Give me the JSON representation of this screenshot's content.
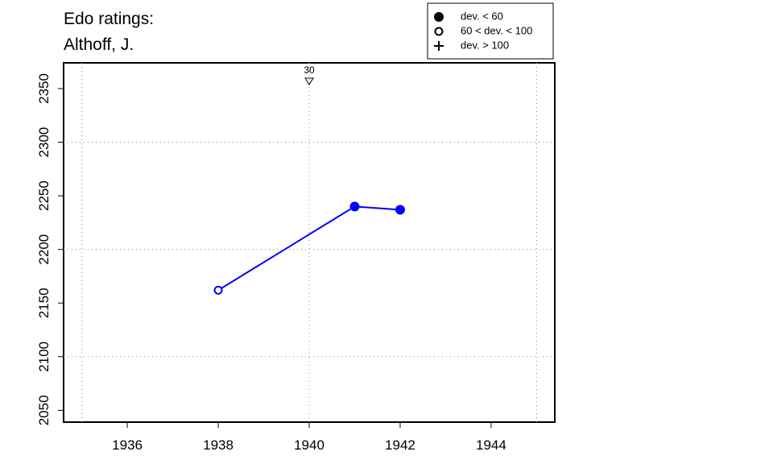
{
  "chart_data": {
    "type": "line",
    "title": "Edo ratings:",
    "subtitle": "Althoff, J.",
    "x": [
      1938,
      1941,
      1942
    ],
    "series": [
      {
        "name": "Althoff, J.",
        "color": "#0000ff",
        "values": [
          2162,
          2240,
          2237
        ],
        "markers": [
          "open",
          "filled",
          "filled"
        ]
      }
    ],
    "xlim": [
      1934.6,
      1945.4
    ],
    "xticks": [
      1936,
      1938,
      1940,
      1942,
      1944
    ],
    "ylim": [
      2039,
      2374
    ],
    "yticks": [
      2050,
      2100,
      2150,
      2200,
      2250,
      2300,
      2350
    ],
    "xgrid": [
      1935,
      1940,
      1945
    ],
    "ygrid": [
      2100,
      2200,
      2300
    ],
    "legend": {
      "position": "top-right",
      "entries": [
        {
          "marker": "filled",
          "label": "dev. < 60"
        },
        {
          "marker": "open",
          "label": "60 < dev. < 100"
        },
        {
          "marker": "plus",
          "label": "dev. > 100"
        }
      ]
    },
    "annotations": [
      {
        "x": 1940,
        "label": "30"
      }
    ]
  }
}
